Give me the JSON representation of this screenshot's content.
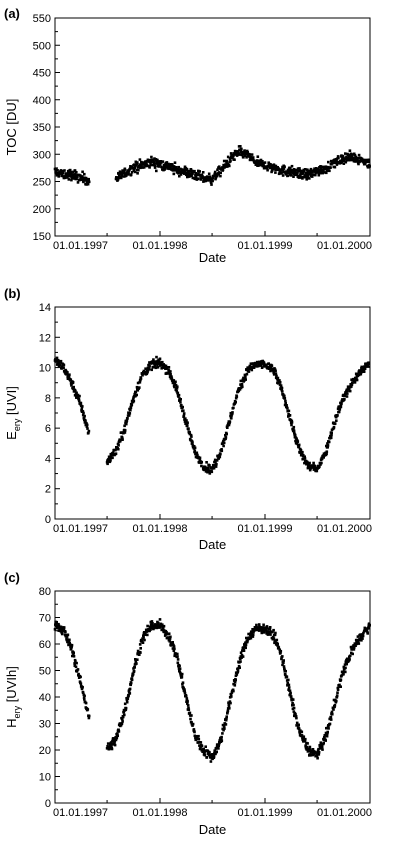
{
  "figure": {
    "panels": [
      {
        "label": "(a)",
        "ylabel": "TOC [DU]",
        "ylabel_sub": "",
        "ylabel_suffix": "",
        "xlabel": "Date"
      },
      {
        "label": "(b)",
        "ylabel": "E",
        "ylabel_sub": "ery",
        "ylabel_suffix": " [UVI]",
        "xlabel": "Date"
      },
      {
        "label": "(c)",
        "ylabel": "H",
        "ylabel_sub": "ery",
        "ylabel_suffix": " [UVIh]",
        "xlabel": "Date"
      }
    ]
  },
  "chart_data": [
    {
      "type": "scatter",
      "title": "(a)",
      "xlabel": "Date",
      "ylabel": "TOC [DU]",
      "xlim": [
        "1997-01-01",
        "2000-01-01"
      ],
      "ylim": [
        150,
        550
      ],
      "x_ticks": [
        "01.01.1997",
        "01.01.1998",
        "01.01.1999",
        "01.01.2000"
      ],
      "y_ticks": [
        150,
        200,
        250,
        300,
        350,
        400,
        450,
        500,
        550
      ],
      "grid": false,
      "marker_color": "#000000",
      "series": [
        {
          "x": [
            "1997-01-01",
            "1997-02-01",
            "1997-03-01",
            "1997-04-01",
            "1997-05-01",
            "1997-06-01",
            "1997-07-01",
            "1997-08-01",
            "1997-09-01",
            "1997-10-01",
            "1997-11-01",
            "1997-12-01",
            "1998-01-01",
            "1998-02-01",
            "1998-03-01",
            "1998-04-01",
            "1998-05-01",
            "1998-06-01",
            "1998-07-01",
            "1998-08-01",
            "1998-09-01",
            "1998-10-01",
            "1998-11-01",
            "1998-12-01",
            "1999-01-01",
            "1999-02-01",
            "1999-03-01",
            "1999-04-01",
            "1999-05-01",
            "1999-06-01",
            "1999-07-01",
            "1999-08-01",
            "1999-09-01",
            "1999-10-01",
            "1999-11-01",
            "1999-12-01",
            "2000-01-01"
          ],
          "y": [
            268,
            262,
            262,
            258,
            250,
            null,
            null,
            255,
            265,
            275,
            280,
            285,
            282,
            278,
            270,
            268,
            262,
            256,
            255,
            270,
            290,
            305,
            298,
            285,
            280,
            275,
            270,
            268,
            265,
            262,
            270,
            275,
            285,
            292,
            295,
            290,
            282
          ]
        }
      ]
    },
    {
      "type": "scatter",
      "title": "(b)",
      "xlabel": "Date",
      "ylabel": "Eery [UVI]",
      "xlim": [
        "1997-01-01",
        "2000-01-01"
      ],
      "ylim": [
        0,
        14
      ],
      "x_ticks": [
        "01.01.1997",
        "01.01.1998",
        "01.01.1999",
        "01.01.2000"
      ],
      "y_ticks": [
        0,
        2,
        4,
        6,
        8,
        10,
        12,
        14
      ],
      "grid": false,
      "marker_color": "#000000",
      "series": [
        {
          "x": [
            "1997-01-01",
            "1997-02-01",
            "1997-03-01",
            "1997-04-01",
            "1997-05-01",
            "1997-06-01",
            "1997-07-01",
            "1997-08-01",
            "1997-09-01",
            "1997-10-01",
            "1997-11-01",
            "1997-12-01",
            "1998-01-01",
            "1998-02-01",
            "1998-03-01",
            "1998-04-01",
            "1998-05-01",
            "1998-06-01",
            "1998-07-01",
            "1998-08-01",
            "1998-09-01",
            "1998-10-01",
            "1998-11-01",
            "1998-12-01",
            "1999-01-01",
            "1999-02-01",
            "1999-03-01",
            "1999-04-01",
            "1999-05-01",
            "1999-06-01",
            "1999-07-01",
            "1999-08-01",
            "1999-09-01",
            "1999-10-01",
            "1999-11-01",
            "1999-12-01",
            "2000-01-01"
          ],
          "y": [
            10.5,
            10.0,
            9.0,
            7.5,
            5.5,
            null,
            3.8,
            4.5,
            6.0,
            8.0,
            9.5,
            10.2,
            10.3,
            9.8,
            8.5,
            6.5,
            4.5,
            3.5,
            3.2,
            4.5,
            6.5,
            8.5,
            9.8,
            10.2,
            10.2,
            9.8,
            8.5,
            6.5,
            4.5,
            3.5,
            3.3,
            4.5,
            6.5,
            8.0,
            9.0,
            9.8,
            10.3
          ]
        }
      ]
    },
    {
      "type": "scatter",
      "title": "(c)",
      "xlabel": "Date",
      "ylabel": "Hery [UVIh]",
      "xlim": [
        "1997-01-01",
        "2000-01-01"
      ],
      "ylim": [
        0,
        80
      ],
      "x_ticks": [
        "01.01.1997",
        "01.01.1998",
        "01.01.1999",
        "01.01.2000"
      ],
      "y_ticks": [
        0,
        10,
        20,
        30,
        40,
        50,
        60,
        70,
        80
      ],
      "grid": false,
      "marker_color": "#000000",
      "series": [
        {
          "x": [
            "1997-01-01",
            "1997-02-01",
            "1997-03-01",
            "1997-04-01",
            "1997-05-01",
            "1997-06-01",
            "1997-07-01",
            "1997-08-01",
            "1997-09-01",
            "1997-10-01",
            "1997-11-01",
            "1997-12-01",
            "1998-01-01",
            "1998-02-01",
            "1998-03-01",
            "1998-04-01",
            "1998-05-01",
            "1998-06-01",
            "1998-07-01",
            "1998-08-01",
            "1998-09-01",
            "1998-10-01",
            "1998-11-01",
            "1998-12-01",
            "1999-01-01",
            "1999-02-01",
            "1999-03-01",
            "1999-04-01",
            "1999-05-01",
            "1999-06-01",
            "1999-07-01",
            "1999-08-01",
            "1999-09-01",
            "1999-10-01",
            "1999-11-01",
            "1999-12-01",
            "2000-01-01"
          ],
          "y": [
            68,
            65,
            58,
            45,
            32,
            null,
            20,
            24,
            35,
            50,
            62,
            67,
            67,
            63,
            55,
            40,
            26,
            20,
            17,
            24,
            38,
            52,
            62,
            66,
            66,
            63,
            55,
            40,
            27,
            20,
            18,
            25,
            38,
            50,
            58,
            63,
            67
          ]
        }
      ]
    }
  ]
}
